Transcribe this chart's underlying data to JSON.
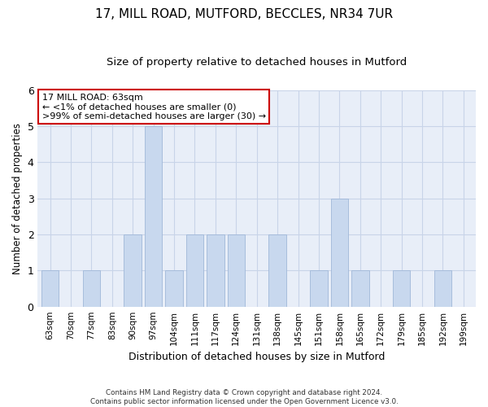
{
  "title1": "17, MILL ROAD, MUTFORD, BECCLES, NR34 7UR",
  "title2": "Size of property relative to detached houses in Mutford",
  "xlabel": "Distribution of detached houses by size in Mutford",
  "ylabel": "Number of detached properties",
  "categories": [
    "63sqm",
    "70sqm",
    "77sqm",
    "83sqm",
    "90sqm",
    "97sqm",
    "104sqm",
    "111sqm",
    "117sqm",
    "124sqm",
    "131sqm",
    "138sqm",
    "145sqm",
    "151sqm",
    "158sqm",
    "165sqm",
    "172sqm",
    "179sqm",
    "185sqm",
    "192sqm",
    "199sqm"
  ],
  "values": [
    1,
    0,
    1,
    0,
    2,
    5,
    1,
    2,
    2,
    2,
    0,
    2,
    0,
    1,
    3,
    1,
    0,
    1,
    0,
    1,
    0
  ],
  "bar_color": "#c8d8ee",
  "annotation_title": "17 MILL ROAD: 63sqm",
  "annotation_line1": "← <1% of detached houses are smaller (0)",
  "annotation_line2": ">99% of semi-detached houses are larger (30) →",
  "annotation_box_color": "#ffffff",
  "annotation_box_edge": "#cc0000",
  "ylim": [
    0,
    6
  ],
  "yticks": [
    0,
    1,
    2,
    3,
    4,
    5,
    6
  ],
  "footer1": "Contains HM Land Registry data © Crown copyright and database right 2024.",
  "footer2": "Contains public sector information licensed under the Open Government Licence v3.0."
}
